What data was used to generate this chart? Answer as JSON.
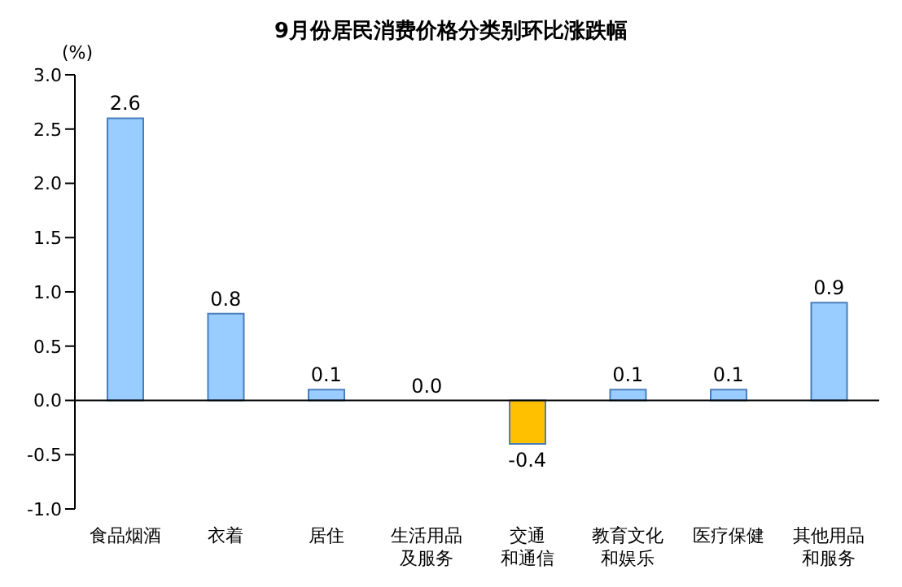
{
  "chart_data": {
    "type": "bar",
    "title": "9月份居民消费价格分类别环比涨跌幅",
    "ylabel": "(%)",
    "categories": [
      "食品烟酒",
      "衣着",
      "居住",
      "生活用品及服务",
      "交通和通信",
      "教育文化和娱乐",
      "医疗保健",
      "其他用品和服务"
    ],
    "ref_lines": [
      {
        "axis": "y",
        "value": 0,
        "color": "#000000"
      }
    ],
    "values": [
      2.6,
      0.8,
      0.1,
      0.0,
      -0.4,
      0.1,
      0.1,
      0.9
    ],
    "value_labels": [
      "2.6",
      "0.8",
      "0.1",
      "0.0",
      "-0.4",
      "0.1",
      "0.1",
      "0.9"
    ],
    "colors": [
      "#99ccff",
      "#99ccff",
      "#99ccff",
      "#99ccff",
      "#ffc000",
      "#99ccff",
      "#99ccff",
      "#99ccff"
    ],
    "ylim": [
      -1.0,
      3.0
    ],
    "yticks": [
      {
        "value": -1,
        "label": "-1.0"
      },
      {
        "value": -0.5,
        "label": "-0.5"
      },
      {
        "value": 0,
        "label": "0.0"
      },
      {
        "value": 0.5,
        "label": "0.5"
      },
      {
        "value": 1,
        "label": "1.0"
      },
      {
        "value": 1.5,
        "label": "1.5"
      },
      {
        "value": 2,
        "label": "2.0"
      },
      {
        "value": 2.5,
        "label": "2.5"
      },
      {
        "value": 3,
        "label": "3.0"
      }
    ],
    "grid": false,
    "legend": false
  }
}
